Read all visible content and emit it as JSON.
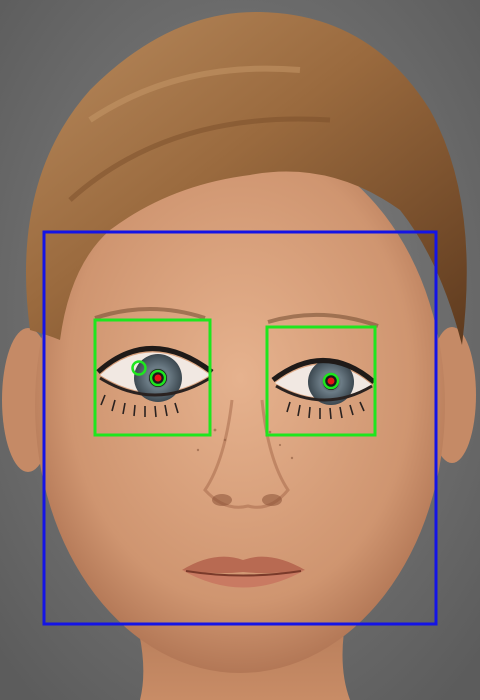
{
  "colors": {
    "face_box": "#1414e6",
    "eye_box": "#1ee61e",
    "eye_circle": "#1ee61e",
    "pupil_dot": "#e61414",
    "background": "#6e6e6e",
    "hair": "#9a6a3e",
    "skin": "#d9a27c"
  },
  "detections": {
    "face_count": 1,
    "eye_count": 2,
    "eye_candidate_count": 3,
    "pupil_count": 2
  }
}
